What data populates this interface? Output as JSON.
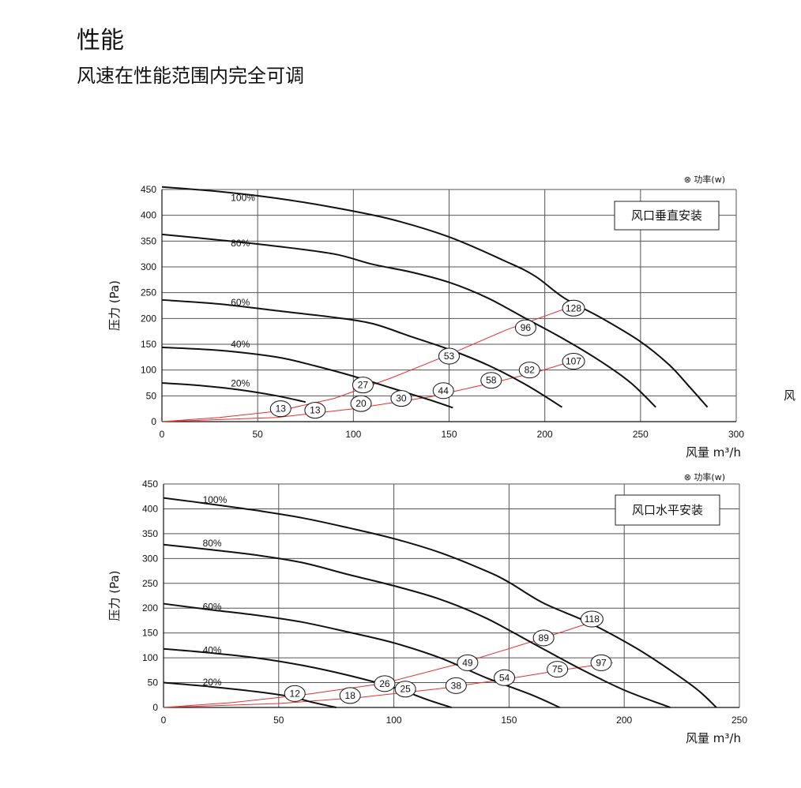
{
  "page": {
    "title": "性能",
    "subtitle": "风速在性能范围内完全可调",
    "edge_text": "风"
  },
  "chart_data": [
    {
      "type": "line",
      "box_label": "风口垂直安装",
      "legend": "功率(w)",
      "legend_symbol": "⊗",
      "xlabel": "风量 m³/h",
      "ylabel": "压力 (Pa)",
      "xlim": [
        0,
        300
      ],
      "ylim": [
        0,
        450
      ],
      "xticks": [
        0,
        50,
        100,
        150,
        200,
        250,
        300
      ],
      "yticks": [
        0,
        50,
        100,
        150,
        200,
        250,
        300,
        350,
        400,
        450
      ],
      "grid": true,
      "series": [
        {
          "name": "100%",
          "label_at": [
            36,
            434
          ],
          "points": [
            [
              0,
              455
            ],
            [
              30,
              446
            ],
            [
              60,
              433
            ],
            [
              90,
              415
            ],
            [
              120,
              392
            ],
            [
              150,
              358
            ],
            [
              180,
              310
            ],
            [
              195,
              282
            ],
            [
              210,
              240
            ],
            [
              230,
              200
            ],
            [
              250,
              155
            ],
            [
              265,
              110
            ],
            [
              275,
              70
            ],
            [
              285,
              28
            ]
          ]
        },
        {
          "name": "80%",
          "label_at": [
            36,
            346
          ],
          "points": [
            [
              0,
              363
            ],
            [
              30,
              352
            ],
            [
              60,
              340
            ],
            [
              90,
              325
            ],
            [
              110,
              305
            ],
            [
              130,
              290
            ],
            [
              150,
              270
            ],
            [
              170,
              240
            ],
            [
              190,
              200
            ],
            [
              210,
              160
            ],
            [
              230,
              115
            ],
            [
              245,
              75
            ],
            [
              258,
              28
            ]
          ]
        },
        {
          "name": "60%",
          "label_at": [
            36,
            231
          ],
          "points": [
            [
              0,
              236
            ],
            [
              30,
              228
            ],
            [
              60,
              215
            ],
            [
              90,
              202
            ],
            [
              110,
              190
            ],
            [
              130,
              165
            ],
            [
              150,
              140
            ],
            [
              170,
              110
            ],
            [
              190,
              72
            ],
            [
              209,
              28
            ]
          ]
        },
        {
          "name": "40%",
          "label_at": [
            36,
            150
          ],
          "points": [
            [
              0,
              144
            ],
            [
              30,
              138
            ],
            [
              60,
              125
            ],
            [
              80,
              108
            ],
            [
              100,
              88
            ],
            [
              120,
              65
            ],
            [
              140,
              42
            ],
            [
              152,
              27
            ]
          ]
        },
        {
          "name": "20%",
          "label_at": [
            36,
            74
          ],
          "points": [
            [
              0,
              75
            ],
            [
              20,
              70
            ],
            [
              40,
              62
            ],
            [
              60,
              50
            ],
            [
              75,
              38
            ]
          ]
        }
      ],
      "power_lines": [
        [
          [
            0,
            0
          ],
          [
            30,
            8
          ],
          [
            60,
            20
          ],
          [
            90,
            45
          ],
          [
            120,
            85
          ],
          [
            150,
            130
          ],
          [
            180,
            178
          ],
          [
            210,
            218
          ]
        ],
        [
          [
            0,
            0
          ],
          [
            60,
            8
          ],
          [
            100,
            25
          ],
          [
            140,
            48
          ],
          [
            170,
            73
          ],
          [
            195,
            95
          ],
          [
            215,
            118
          ]
        ]
      ],
      "power_labels": [
        {
          "value": "13",
          "x": 62,
          "y": 25
        },
        {
          "value": "13",
          "x": 80,
          "y": 22
        },
        {
          "value": "20",
          "x": 104,
          "y": 35
        },
        {
          "value": "27",
          "x": 105,
          "y": 71
        },
        {
          "value": "30",
          "x": 125,
          "y": 45
        },
        {
          "value": "44",
          "x": 147,
          "y": 60
        },
        {
          "value": "53",
          "x": 150,
          "y": 127
        },
        {
          "value": "58",
          "x": 172,
          "y": 80
        },
        {
          "value": "96",
          "x": 190,
          "y": 182
        },
        {
          "value": "82",
          "x": 192,
          "y": 100
        },
        {
          "value": "128",
          "x": 215,
          "y": 220
        },
        {
          "value": "107",
          "x": 215,
          "y": 117
        }
      ]
    },
    {
      "type": "line",
      "box_label": "风口水平安装",
      "legend": "功率(w)",
      "legend_symbol": "⊗",
      "xlabel": "风量 m³/h",
      "ylabel": "压力 (Pa)",
      "xlim": [
        0,
        250
      ],
      "ylim": [
        0,
        450
      ],
      "xticks": [
        0,
        50,
        100,
        150,
        200,
        250
      ],
      "yticks": [
        0,
        50,
        100,
        150,
        200,
        250,
        300,
        350,
        400,
        450
      ],
      "grid": true,
      "series": [
        {
          "name": "100%",
          "label_at": [
            17,
            418
          ],
          "points": [
            [
              0,
              422
            ],
            [
              20,
              410
            ],
            [
              40,
              397
            ],
            [
              60,
              382
            ],
            [
              80,
              362
            ],
            [
              100,
              340
            ],
            [
              120,
              312
            ],
            [
              140,
              275
            ],
            [
              150,
              252
            ],
            [
              165,
              210
            ],
            [
              185,
              170
            ],
            [
              205,
              120
            ],
            [
              220,
              75
            ],
            [
              232,
              35
            ],
            [
              240,
              0
            ]
          ]
        },
        {
          "name": "80%",
          "label_at": [
            17,
            331
          ],
          "points": [
            [
              0,
              328
            ],
            [
              20,
              318
            ],
            [
              40,
              307
            ],
            [
              60,
              292
            ],
            [
              80,
              268
            ],
            [
              100,
              245
            ],
            [
              120,
              218
            ],
            [
              140,
              180
            ],
            [
              160,
              130
            ],
            [
              180,
              80
            ],
            [
              200,
              35
            ],
            [
              220,
              0
            ]
          ]
        },
        {
          "name": "60%",
          "label_at": [
            17,
            203
          ],
          "points": [
            [
              0,
              209
            ],
            [
              20,
              197
            ],
            [
              40,
              186
            ],
            [
              60,
              172
            ],
            [
              80,
              152
            ],
            [
              100,
              130
            ],
            [
              120,
              100
            ],
            [
              140,
              60
            ],
            [
              160,
              25
            ],
            [
              172,
              0
            ]
          ]
        },
        {
          "name": "40%",
          "label_at": [
            17,
            115
          ],
          "points": [
            [
              0,
              118
            ],
            [
              20,
              110
            ],
            [
              40,
              100
            ],
            [
              60,
              85
            ],
            [
              80,
              65
            ],
            [
              100,
              40
            ],
            [
              115,
              15
            ],
            [
              125,
              0
            ]
          ]
        },
        {
          "name": "20%",
          "label_at": [
            17,
            51
          ],
          "points": [
            [
              0,
              50
            ],
            [
              20,
              42
            ],
            [
              40,
              32
            ],
            [
              55,
              22
            ],
            [
              65,
              10
            ],
            [
              75,
              0
            ]
          ]
        }
      ],
      "power_lines": [
        [
          [
            0,
            0
          ],
          [
            30,
            10
          ],
          [
            60,
            25
          ],
          [
            95,
            48
          ],
          [
            130,
            90
          ],
          [
            165,
            140
          ],
          [
            190,
            178
          ]
        ],
        [
          [
            0,
            0
          ],
          [
            50,
            8
          ],
          [
            85,
            20
          ],
          [
            120,
            38
          ],
          [
            150,
            58
          ],
          [
            175,
            77
          ],
          [
            195,
            90
          ]
        ]
      ],
      "power_labels": [
        {
          "value": "12",
          "x": 57,
          "y": 28
        },
        {
          "value": "18",
          "x": 81,
          "y": 24
        },
        {
          "value": "26",
          "x": 96,
          "y": 48
        },
        {
          "value": "25",
          "x": 105,
          "y": 37
        },
        {
          "value": "38",
          "x": 127,
          "y": 44
        },
        {
          "value": "49",
          "x": 132,
          "y": 90
        },
        {
          "value": "54",
          "x": 148,
          "y": 60
        },
        {
          "value": "89",
          "x": 165,
          "y": 140
        },
        {
          "value": "75",
          "x": 171,
          "y": 77
        },
        {
          "value": "118",
          "x": 186,
          "y": 178
        },
        {
          "value": "97",
          "x": 190,
          "y": 90
        }
      ]
    }
  ]
}
